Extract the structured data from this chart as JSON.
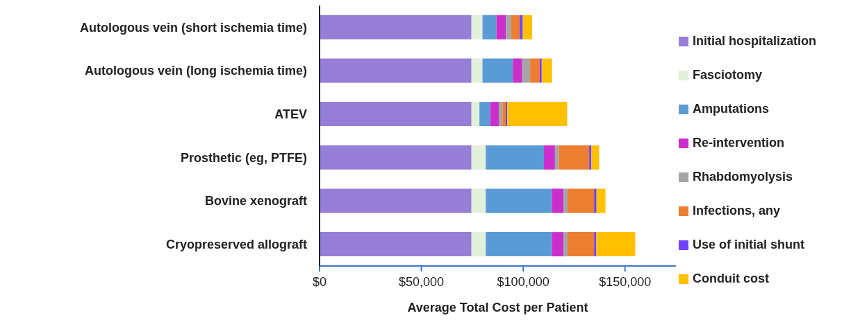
{
  "chart_data": {
    "type": "bar",
    "orientation": "horizontal",
    "stacked": true,
    "xlabel": "Average Total Cost per Patient",
    "categories": [
      "Autologous vein (short ischemia time)",
      "Autologous vein (long ischemia time)",
      "ATEV",
      "Prosthetic (eg, PTFE)",
      "Bovine xenograft",
      "Cryopreserved allograft"
    ],
    "series": [
      {
        "name": "Initial hospitalization",
        "color": "#967ed6",
        "values": [
          74600,
          74600,
          74600,
          74600,
          74600,
          74600
        ]
      },
      {
        "name": "Fasciotomy",
        "color": "#e2efda",
        "values": [
          5400,
          5400,
          3900,
          7000,
          7000,
          7000
        ]
      },
      {
        "name": "Amputations",
        "color": "#5b9bd5",
        "values": [
          6800,
          14900,
          5300,
          28600,
          32500,
          32500
        ]
      },
      {
        "name": "Re-intervention",
        "color": "#cc2ecc",
        "values": [
          4700,
          4600,
          4200,
          5400,
          5700,
          5700
        ]
      },
      {
        "name": "Rhabdomyolysis",
        "color": "#a5a5a5",
        "values": [
          2600,
          3900,
          1800,
          1900,
          2000,
          2000
        ]
      },
      {
        "name": "Infections, any",
        "color": "#ed7d31",
        "values": [
          4200,
          4700,
          1600,
          14900,
          13000,
          13000
        ]
      },
      {
        "name": "Use of initial shunt",
        "color": "#7044ff",
        "values": [
          1500,
          1000,
          800,
          1100,
          1200,
          1100
        ]
      },
      {
        "name": "Conduit cost",
        "color": "#ffc000",
        "values": [
          4600,
          5000,
          29400,
          3800,
          4400,
          19100
        ]
      }
    ],
    "xlim": [
      0,
      175000
    ],
    "xticks": [
      {
        "value": 0,
        "label": "$0"
      },
      {
        "value": 50000,
        "label": "$50,000"
      },
      {
        "value": 100000,
        "label": "$100,000"
      },
      {
        "value": 150000,
        "label": "$150,000"
      }
    ],
    "grid": false,
    "legend": "right"
  }
}
